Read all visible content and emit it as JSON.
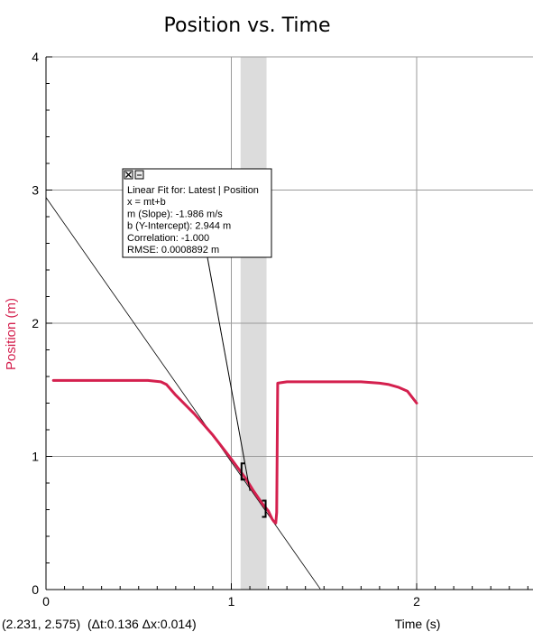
{
  "title": "Position vs. Time",
  "status_readout": "(2.231, 2.575)  (Δt:0.136 Δx:0.014)",
  "colors": {
    "series": "#d4204e",
    "grid": "#9a9a9a",
    "selection": "#dcdcdc",
    "fit_line": "#000000"
  },
  "fit_box": {
    "close_icon": "close-icon",
    "menu_icon": "options-icon",
    "lines": [
      "Linear Fit for: Latest | Position",
      "x = mt+b",
      "m (Slope): -1.986 m/s",
      "b (Y-Intercept): 2.944 m",
      "Correlation: -1.000",
      "RMSE: 0.0008892 m"
    ]
  },
  "chart_data": {
    "type": "line",
    "title": "Position vs. Time",
    "xlabel": "Time (s)",
    "ylabel": "Position (m)",
    "xlim": [
      0,
      2.65
    ],
    "ylim": [
      0,
      4
    ],
    "x_ticks": [
      "0",
      "1",
      "2"
    ],
    "y_ticks": [
      "0",
      "1",
      "2",
      "3",
      "4"
    ],
    "grid": true,
    "selection_range": [
      1.05,
      1.19
    ],
    "fit": {
      "slope": -1.986,
      "intercept": 2.944,
      "x_range": [
        0,
        1.48
      ]
    },
    "series": [
      {
        "name": "Position",
        "x": [
          0.04,
          0.2,
          0.4,
          0.55,
          0.62,
          0.65,
          0.7,
          0.8,
          0.9,
          1.0,
          1.08,
          1.12,
          1.17,
          1.2,
          1.22,
          1.23,
          1.24,
          1.245,
          1.25,
          1.3,
          1.5,
          1.6,
          1.7,
          1.8,
          1.85,
          1.9,
          1.95,
          2.0
        ],
        "y": [
          1.57,
          1.57,
          1.57,
          1.57,
          1.56,
          1.54,
          1.46,
          1.32,
          1.16,
          0.98,
          0.83,
          0.74,
          0.64,
          0.59,
          0.53,
          0.51,
          0.5,
          0.58,
          1.55,
          1.56,
          1.56,
          1.56,
          1.56,
          1.55,
          1.54,
          1.52,
          1.49,
          1.4
        ]
      }
    ]
  }
}
